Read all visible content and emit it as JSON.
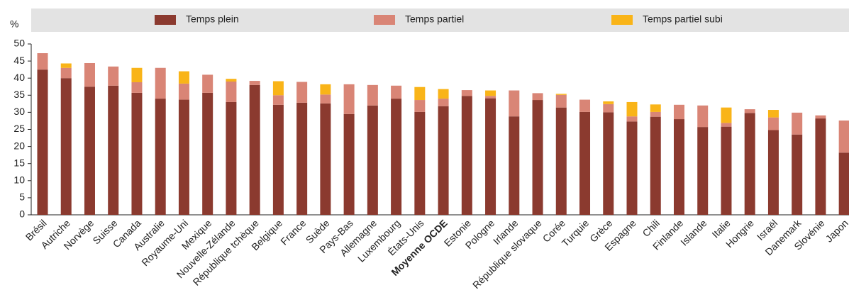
{
  "chart_data": {
    "type": "stacked_bar",
    "unit_label": "%",
    "categories": [
      "Brésil",
      "Autriche",
      "Norvège",
      "Suisse",
      "Canada",
      "Australie",
      "Royaume-Uni",
      "Mexique",
      "Nouvelle-Zélande",
      "République tchèque",
      "Belgique",
      "France",
      "Suède",
      "Pays-Bas",
      "Allemagne",
      "Luxembourg",
      "États-Unis",
      "Moyenne OCDE",
      "Estonie",
      "Pologne",
      "Irlande",
      "République slovaque",
      "Corée",
      "Turquie",
      "Grèce",
      "Espagne",
      "Chili",
      "Finlande",
      "Islande",
      "Italie",
      "Hongrie",
      "Israël",
      "Danemark",
      "Slovénie",
      "Japon"
    ],
    "highlight": "Moyenne OCDE",
    "series": [
      {
        "name": "Temps plein",
        "color": "#8b3a2f",
        "values": [
          42.5,
          40,
          37.5,
          37.8,
          35.7,
          34,
          33.7,
          35.7,
          33,
          38,
          32.2,
          32.8,
          32.6,
          29.5,
          32,
          34,
          30.1,
          31.8,
          34.8,
          34.1,
          28.8,
          33.6,
          31.4,
          30.1,
          30,
          27.3,
          28.7,
          28,
          25.7,
          25.8,
          29.8,
          24.8,
          23.5,
          28.2,
          18.2
        ]
      },
      {
        "name": "Temps partiel",
        "color": "#d98576",
        "values": [
          4.8,
          3,
          6.9,
          5.6,
          3.1,
          9,
          4.7,
          5.3,
          6,
          1.2,
          2.8,
          6.1,
          2.6,
          8.7,
          6,
          3.8,
          3.5,
          2.2,
          1.7,
          0.7,
          7.6,
          2,
          3.7,
          3.6,
          2.4,
          1.5,
          1.4,
          4.2,
          6.3,
          1.1,
          1.1,
          3.7,
          6.4,
          0.9,
          9.4
        ]
      },
      {
        "name": "Temps partiel subi",
        "color": "#f9b418",
        "values": [
          0,
          1.3,
          0,
          0,
          4.2,
          0,
          3.6,
          0,
          0.8,
          0,
          4.1,
          0,
          3,
          0,
          0,
          0,
          3.8,
          2.8,
          0,
          1.6,
          0,
          0,
          0.3,
          0,
          0.8,
          4.2,
          2.2,
          0,
          0,
          4.5,
          0,
          2.2,
          0,
          0,
          0
        ]
      }
    ],
    "ylim": [
      0,
      50
    ],
    "yticks": [
      0,
      5,
      10,
      15,
      20,
      25,
      30,
      35,
      40,
      45,
      50
    ]
  }
}
